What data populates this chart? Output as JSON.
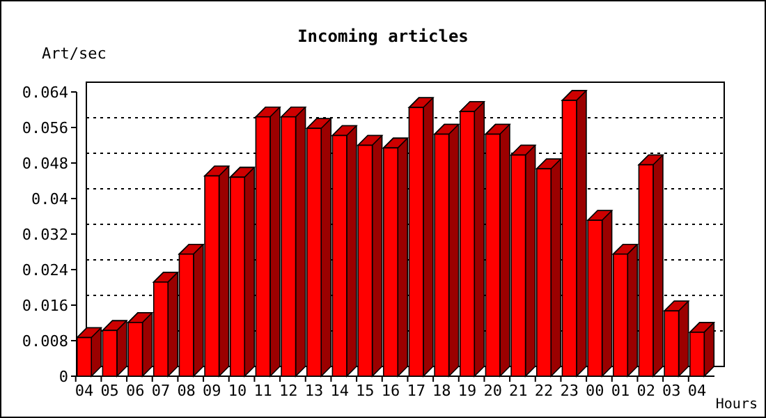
{
  "chart_data": {
    "type": "bar",
    "title": "Incoming articles",
    "xlabel": "Hours",
    "ylabel": "Art/sec",
    "categories": [
      "04",
      "05",
      "06",
      "07",
      "08",
      "09",
      "10",
      "11",
      "12",
      "13",
      "14",
      "15",
      "16",
      "17",
      "18",
      "19",
      "20",
      "21",
      "22",
      "23",
      "00",
      "01",
      "02",
      "03",
      "04"
    ],
    "values": [
      0.0087,
      0.0103,
      0.0121,
      0.0212,
      0.0275,
      0.0451,
      0.0448,
      0.0584,
      0.0584,
      0.0558,
      0.0542,
      0.052,
      0.0514,
      0.0605,
      0.0545,
      0.0596,
      0.0545,
      0.0498,
      0.0467,
      0.0621,
      0.0351,
      0.0275,
      0.0476,
      0.0147,
      0.0099
    ],
    "color": "#ff0000",
    "ylim": [
      0,
      0.064
    ],
    "yticks": [
      0,
      0.008,
      0.016,
      0.024,
      0.032,
      0.04,
      0.048,
      0.056,
      0.064
    ],
    "grid": "y"
  }
}
